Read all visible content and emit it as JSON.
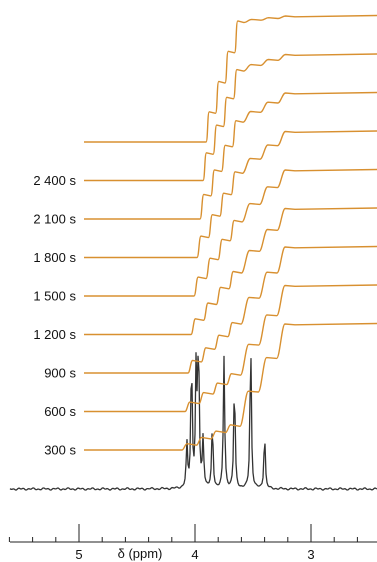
{
  "chart_data": {
    "type": "line",
    "title": "",
    "x_axis": {
      "label": "δ (ppm)",
      "reversed": true,
      "range": [
        5.65,
        2.55
      ],
      "major_ticks": [
        5,
        4,
        3
      ],
      "tick_labels": [
        "5",
        "4",
        "3"
      ],
      "minor_tick_step": 0.2
    },
    "spectrum": {
      "name": "",
      "color": "#333333",
      "peaks_ppm": [
        4.07,
        4.03,
        3.99,
        3.97,
        3.93,
        3.85,
        3.75,
        3.66,
        3.52,
        3.4
      ],
      "peak_heights": [
        0.28,
        0.85,
        0.78,
        0.95,
        0.32,
        0.42,
        0.85,
        0.7,
        0.97,
        0.36
      ]
    },
    "integral_curves": {
      "color": "#d89030",
      "series": [
        {
          "label": "300 s",
          "step_fraction_at_3_6ppm": 0.2
        },
        {
          "label": "600 s",
          "step_fraction_at_3_6ppm": 0.3
        },
        {
          "label": "900 s",
          "step_fraction_at_3_6ppm": 0.4
        },
        {
          "label": "1 200 s",
          "step_fraction_at_3_6ppm": 0.5
        },
        {
          "label": "1 500 s",
          "step_fraction_at_3_6ppm": 0.6
        },
        {
          "label": "1 800 s",
          "step_fraction_at_3_6ppm": 0.68
        },
        {
          "label": "2 100 s",
          "step_fraction_at_3_6ppm": 0.78
        },
        {
          "label": "2 400 s",
          "step_fraction_at_3_6ppm": 0.88
        },
        {
          "label": "",
          "step_fraction_at_3_6ppm": 0.96
        }
      ]
    },
    "grid": false,
    "legend": "none"
  }
}
